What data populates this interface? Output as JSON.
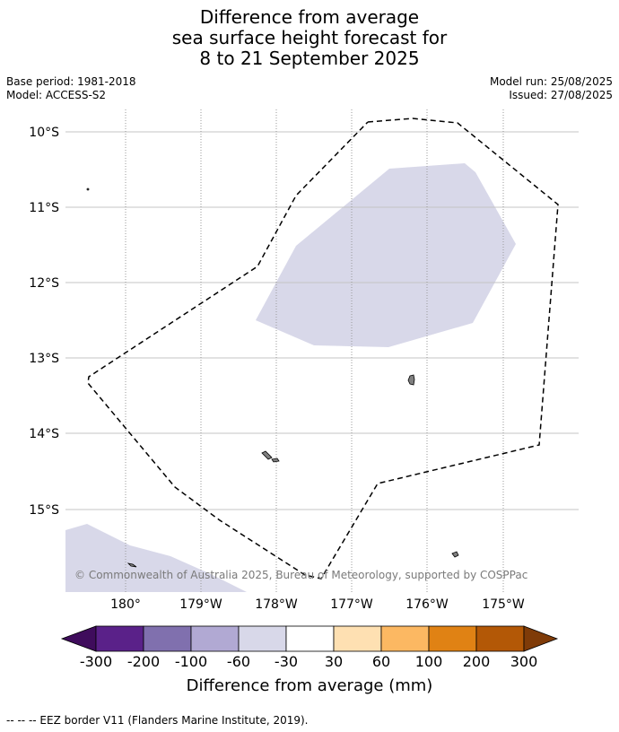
{
  "title": {
    "line1": "Difference from average",
    "line2": "sea surface height forecast for",
    "line3": "8 to 21 September 2025"
  },
  "meta": {
    "base_period": "Base period: 1981-2018",
    "model": "Model: ACCESS-S2",
    "model_run": "Model run: 25/08/2025",
    "issued": "Issued: 27/08/2025"
  },
  "map": {
    "lat_labels": [
      "10°S",
      "11°S",
      "12°S",
      "13°S",
      "14°S",
      "15°S"
    ],
    "lon_labels": [
      "180°",
      "179°W",
      "178°W",
      "177°W",
      "176°W",
      "175°W"
    ],
    "anomaly_fill_color": "#d8d8e9",
    "copyright": "© Commonwealth of Australia 2025, Bureau of Meteorology, supported by COSPPac"
  },
  "colorbar": {
    "ticks": [
      "-300",
      "-200",
      "-100",
      "-60",
      "-30",
      "30",
      "60",
      "100",
      "200",
      "300"
    ],
    "colors": [
      "#3f0c5c",
      "#5a2189",
      "#8070ae",
      "#b1a9d3",
      "#d8d8e9",
      "#ffffff",
      "#fee0b2",
      "#fcb862",
      "#e08214",
      "#b35806",
      "#7f3b08"
    ],
    "label": "Difference from average (mm)"
  },
  "footnote": "--  --  -- EEZ border V11 (Flanders Marine Institute, 2019)."
}
